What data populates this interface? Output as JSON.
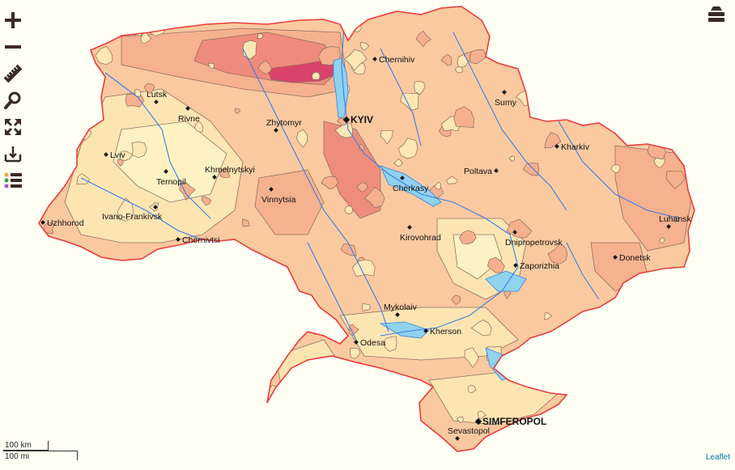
{
  "colors": {
    "background": "#fffff4",
    "country_border": "#e83d3d",
    "base_fill": "#fac9a0",
    "light_fill": "#fde7b4",
    "pale_fill": "#fef3c4",
    "mid_fill": "#f6b08e",
    "hot_fill": "#ef8a7a",
    "core_fill": "#d9406a",
    "water": "#8fd3ef",
    "river": "#3b7ee6",
    "contour": "#8a6a60",
    "attribution": "#0078a8"
  },
  "toolbar": {
    "tools": [
      {
        "name": "zoom-in",
        "icon": "plus-icon"
      },
      {
        "name": "zoom-out",
        "icon": "minus-icon"
      },
      {
        "name": "measure",
        "icon": "ruler-icon"
      },
      {
        "name": "search",
        "icon": "magnifier-icon"
      },
      {
        "name": "full-extent",
        "icon": "expand-arrows-icon"
      },
      {
        "name": "identify",
        "icon": "identify-icon"
      },
      {
        "name": "legend",
        "icon": "legend-list-icon"
      }
    ]
  },
  "layers_control": {
    "icon": "layers-stack-icon"
  },
  "cities": [
    {
      "name": "Chernihiv",
      "capital": false
    },
    {
      "name": "Lutsk",
      "capital": false
    },
    {
      "name": "Rivne",
      "capital": false
    },
    {
      "name": "Zhytomyr",
      "capital": false
    },
    {
      "name": "KYIV",
      "capital": true
    },
    {
      "name": "Sumy",
      "capital": false
    },
    {
      "name": "Kharkiv",
      "capital": false
    },
    {
      "name": "Lviv",
      "capital": false
    },
    {
      "name": "Khmelnytskyi",
      "capital": false
    },
    {
      "name": "Ternopil",
      "capital": false
    },
    {
      "name": "Poltava",
      "capital": false
    },
    {
      "name": "Cherkasy",
      "capital": false
    },
    {
      "name": "Vinnytsia",
      "capital": false
    },
    {
      "name": "Uzhhorod",
      "capital": false
    },
    {
      "name": "Ivano-Frankivsk",
      "capital": false
    },
    {
      "name": "Chernivtsi",
      "capital": false
    },
    {
      "name": "Kirovohrad",
      "capital": false
    },
    {
      "name": "Dnipropetrovsk",
      "capital": false
    },
    {
      "name": "Luhansk",
      "capital": false
    },
    {
      "name": "Donetsk",
      "capital": false
    },
    {
      "name": "Zaporizhia",
      "capital": false
    },
    {
      "name": "Mykolaiv",
      "capital": false
    },
    {
      "name": "Kherson",
      "capital": false
    },
    {
      "name": "Odesa",
      "capital": false
    },
    {
      "name": "SIMFEROPOL",
      "capital": true
    },
    {
      "name": "Sevastopol",
      "capital": false
    }
  ],
  "scale": {
    "km": "100 km",
    "mi": "100 mi"
  },
  "attribution": "Leaflet"
}
